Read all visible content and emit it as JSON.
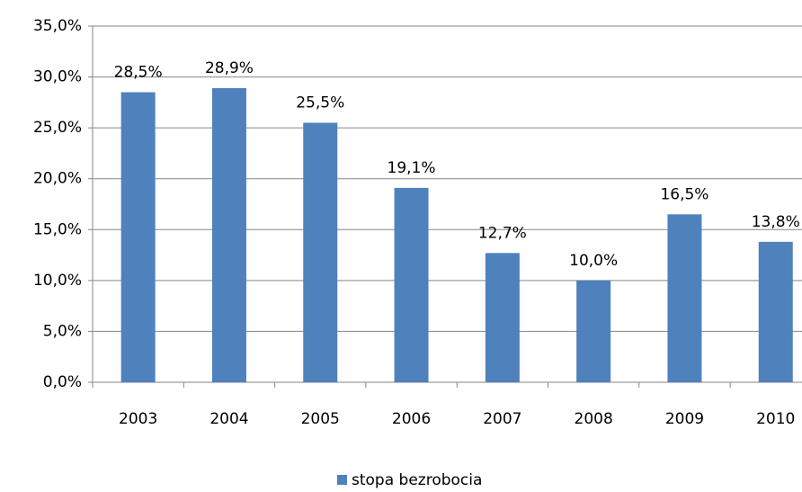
{
  "chart_data": {
    "type": "bar",
    "categories": [
      "2003",
      "2004",
      "2005",
      "2006",
      "2007",
      "2008",
      "2009",
      "2010"
    ],
    "series": [
      {
        "name": "stopa bezrobocia",
        "color": "#4f81bd",
        "values": [
          28.5,
          28.9,
          25.5,
          19.1,
          12.7,
          10.0,
          16.5,
          13.8
        ],
        "value_labels": [
          "28,5%",
          "28,9%",
          "25,5%",
          "19,1%",
          "12,7%",
          "10,0%",
          "16,5%",
          "13,8%"
        ]
      }
    ],
    "ylim": [
      0,
      35
    ],
    "yticks": [
      {
        "value": 0,
        "label": "0,0%"
      },
      {
        "value": 5,
        "label": "5,0%"
      },
      {
        "value": 10,
        "label": "10,0%"
      },
      {
        "value": 15,
        "label": "15,0%"
      },
      {
        "value": 20,
        "label": "20,0%"
      },
      {
        "value": 25,
        "label": "25,0%"
      },
      {
        "value": 30,
        "label": "30,0%"
      },
      {
        "value": 35,
        "label": "35,0%"
      }
    ],
    "grid": true,
    "legend": "bottom"
  }
}
